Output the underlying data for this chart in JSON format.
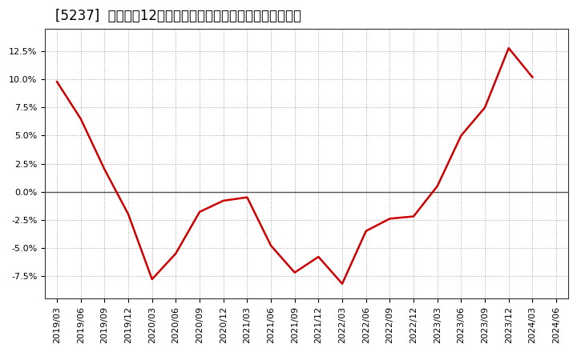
{
  "title": "[5237]  売上高の12か月移動合計の対前年同期増減率の推移",
  "x_labels": [
    "2019/03",
    "2019/06",
    "2019/09",
    "2019/12",
    "2020/03",
    "2020/06",
    "2020/09",
    "2020/12",
    "2021/03",
    "2021/06",
    "2021/09",
    "2021/12",
    "2022/03",
    "2022/06",
    "2022/09",
    "2022/12",
    "2023/03",
    "2023/06",
    "2023/09",
    "2023/12",
    "2024/03",
    "2024/06"
  ],
  "y_values": [
    0.098,
    0.065,
    0.02,
    -0.02,
    -0.078,
    -0.055,
    -0.018,
    -0.008,
    -0.005,
    -0.048,
    -0.072,
    -0.058,
    -0.082,
    -0.035,
    -0.024,
    -0.022,
    0.005,
    0.05,
    0.075,
    0.128,
    0.102,
    null
  ],
  "line_color": "#cc0000",
  "bg_color": "#ffffff",
  "plot_bg_color": "#ffffff",
  "grid_color": "#999999",
  "zero_line_color": "#555555",
  "ylim": [
    -0.095,
    0.145
  ],
  "yticks": [
    -0.075,
    -0.05,
    -0.025,
    0.0,
    0.025,
    0.05,
    0.075,
    0.1,
    0.125
  ],
  "title_fontsize": 12,
  "tick_fontsize": 8
}
